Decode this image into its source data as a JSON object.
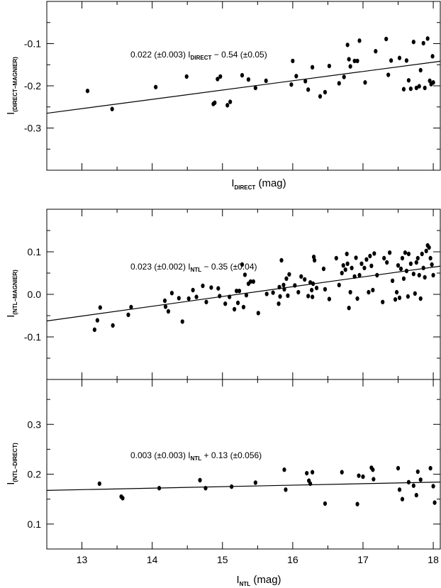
{
  "chart_data": [
    {
      "type": "scatter",
      "panel": "top",
      "xlabel_main": "I",
      "xlabel_sub": "DIRECT",
      "xlabel_unit": " (mag)",
      "ylabel_main": "I",
      "ylabel_sub": "(DIRECT−MAGNIER)",
      "xlim": [
        12.5,
        18.1
      ],
      "ylim": [
        -0.4,
        0.0
      ],
      "yticks": [
        -0.3,
        -0.2,
        -0.1
      ],
      "ytick_labels": [
        "-0.3",
        "-0.2",
        "-0.1"
      ],
      "fit": {
        "slope": 0.022,
        "intercept": -0.54
      },
      "equation": {
        "pre": "0.022 (±0.003) I",
        "sub": "DIRECT",
        "post": " − 0.54 (±0.05)"
      },
      "series": [
        {
          "x": [
            13.08,
            13.43,
            14.05,
            14.49,
            14.87,
            14.89,
            14.93,
            14.97,
            15.07,
            15.11,
            15.28,
            15.37,
            15.47,
            15.62,
            15.98,
            16.0,
            16.05,
            16.18,
            16.22,
            16.28,
            16.39,
            16.46,
            16.52,
            16.66,
            16.73,
            16.78,
            16.8,
            16.82,
            16.88,
            16.92,
            16.95,
            17.03,
            17.18,
            17.33,
            17.36,
            17.4,
            17.52,
            17.58,
            17.62,
            17.65,
            17.68,
            17.72,
            17.76,
            17.8,
            17.82,
            17.86,
            17.88,
            17.92,
            17.95,
            17.97,
            17.99,
            18.0
          ],
          "y": [
            -0.212,
            -0.255,
            -0.203,
            -0.178,
            -0.243,
            -0.24,
            -0.184,
            -0.178,
            -0.246,
            -0.238,
            -0.175,
            -0.185,
            -0.205,
            -0.188,
            -0.197,
            -0.141,
            -0.177,
            -0.189,
            -0.209,
            -0.156,
            -0.225,
            -0.215,
            -0.153,
            -0.194,
            -0.179,
            -0.103,
            -0.137,
            -0.154,
            -0.141,
            -0.141,
            -0.093,
            -0.192,
            -0.118,
            -0.089,
            -0.174,
            -0.14,
            -0.134,
            -0.208,
            -0.14,
            -0.187,
            -0.207,
            -0.096,
            -0.205,
            -0.201,
            -0.163,
            -0.099,
            -0.205,
            -0.088,
            -0.188,
            -0.196,
            -0.13,
            -0.192
          ]
        }
      ]
    },
    {
      "type": "scatter",
      "panel": "middle",
      "ylabel_main": "I",
      "ylabel_sub": "(NTL−MAGNIER)",
      "xlim": [
        12.5,
        18.1
      ],
      "ylim": [
        -0.2,
        0.2
      ],
      "yticks": [
        -0.1,
        0.0,
        0.1
      ],
      "ytick_labels": [
        "-0.1",
        "0.0",
        "0.1"
      ],
      "fit": {
        "slope": 0.023,
        "intercept": -0.35
      },
      "equation": {
        "pre": "0.023 (±0.002) I",
        "sub": "NTL",
        "post": " − 0.35 (±0.04)"
      },
      "series": [
        {
          "x": [
            13.18,
            13.22,
            13.26,
            13.44,
            13.66,
            13.7,
            14.18,
            14.19,
            14.23,
            14.28,
            14.38,
            14.43,
            14.52,
            14.58,
            14.63,
            14.72,
            14.77,
            14.84,
            14.94,
            14.96,
            15.04,
            15.1,
            15.17,
            15.2,
            15.22,
            15.24,
            15.28,
            15.3,
            15.32,
            15.34,
            15.37,
            15.4,
            15.44,
            15.51,
            15.63,
            15.72,
            15.8,
            15.81,
            15.82,
            15.84,
            15.87,
            15.88,
            15.91,
            15.93,
            15.95,
            16.03,
            16.08,
            16.12,
            16.17,
            16.22,
            16.25,
            16.27,
            16.28,
            16.29,
            16.3,
            16.31,
            16.34,
            16.44,
            16.46,
            16.52,
            16.62,
            16.66,
            16.7,
            16.72,
            16.75,
            16.77,
            16.78,
            16.8,
            16.82,
            16.84,
            16.88,
            16.9,
            16.92,
            16.95,
            16.98,
            17.02,
            17.05,
            17.08,
            17.1,
            17.12,
            17.14,
            17.16,
            17.2,
            17.28,
            17.3,
            17.34,
            17.38,
            17.42,
            17.46,
            17.48,
            17.5,
            17.52,
            17.54,
            17.56,
            17.58,
            17.6,
            17.62,
            17.64,
            17.65,
            17.68,
            17.72,
            17.74,
            17.76,
            17.78,
            17.8,
            17.82,
            17.84,
            17.86,
            17.88,
            17.9,
            17.92,
            17.94,
            17.96,
            17.98,
            18.0
          ],
          "y": [
            -0.083,
            -0.061,
            -0.031,
            -0.073,
            -0.048,
            -0.03,
            -0.015,
            -0.029,
            -0.04,
            0.003,
            -0.009,
            -0.064,
            -0.01,
            0.01,
            -0.006,
            0.02,
            -0.018,
            0.016,
            0.014,
            -0.004,
            -0.022,
            -0.006,
            -0.035,
            0.008,
            -0.02,
            0.008,
            0.07,
            -0.03,
            0.046,
            -0.002,
            0.025,
            0.03,
            0.03,
            -0.044,
            0.001,
            0.004,
            -0.022,
            0.017,
            -0.005,
            0.08,
            0.022,
            0.012,
            0.037,
            -0.003,
            0.047,
            0.021,
            0.005,
            0.042,
            0.035,
            -0.004,
            0.028,
            0.01,
            -0.006,
            0.025,
            0.088,
            0.08,
            0.015,
            0.06,
            0.012,
            -0.011,
            0.085,
            0.022,
            0.05,
            0.068,
            0.058,
            0.095,
            0.072,
            -0.032,
            0.005,
            0.062,
            0.042,
            0.086,
            -0.01,
            0.045,
            0.072,
            0.062,
            0.082,
            0.005,
            0.09,
            0.067,
            0.01,
            0.096,
            0.045,
            -0.018,
            0.085,
            0.075,
            0.098,
            0.032,
            -0.012,
            0.005,
            0.068,
            -0.008,
            0.06,
            0.085,
            0.037,
            0.098,
            0.055,
            -0.005,
            0.095,
            0.072,
            0.048,
            0.002,
            0.075,
            0.085,
            0.045,
            -0.01,
            0.095,
            0.062,
            0.04,
            0.102,
            0.115,
            0.11,
            0.085,
            0.07,
            0.045
          ]
        }
      ]
    },
    {
      "type": "scatter",
      "panel": "bottom",
      "xlabel_main": "I",
      "xlabel_sub": "NTL",
      "xlabel_unit": " (mag)",
      "ylabel_main": "I",
      "ylabel_sub": "(NTL−DIRECT)",
      "xlim": [
        12.5,
        18.1
      ],
      "ylim": [
        0.05,
        0.39
      ],
      "xticks": [
        13,
        14,
        15,
        16,
        17,
        18
      ],
      "xtick_labels": [
        "13",
        "14",
        "15",
        "16",
        "17",
        "18"
      ],
      "yticks": [
        0.1,
        0.2,
        0.3
      ],
      "ytick_labels": [
        "0.1",
        "0.2",
        "0.3"
      ],
      "fit": {
        "slope": 0.003,
        "intercept": 0.13
      },
      "equation": {
        "pre": "0.003 (±0.003) I",
        "sub": "NTL",
        "post": " + 0.13 (±0.056)"
      },
      "series": [
        {
          "x": [
            13.25,
            13.56,
            13.58,
            14.1,
            14.68,
            14.76,
            15.13,
            15.47,
            15.88,
            15.9,
            16.2,
            16.23,
            16.25,
            16.28,
            16.46,
            16.7,
            16.92,
            16.94,
            17.0,
            17.12,
            17.14,
            17.15,
            17.5,
            17.52,
            17.56,
            17.65,
            17.72,
            17.76,
            17.78,
            17.82,
            17.96,
            18.0,
            18.02
          ],
          "y": [
            0.181,
            0.155,
            0.152,
            0.172,
            0.188,
            0.172,
            0.175,
            0.183,
            0.209,
            0.169,
            0.202,
            0.187,
            0.181,
            0.204,
            0.141,
            0.204,
            0.14,
            0.197,
            0.195,
            0.213,
            0.209,
            0.19,
            0.212,
            0.169,
            0.15,
            0.184,
            0.177,
            0.158,
            0.205,
            0.189,
            0.212,
            0.176,
            0.143
          ]
        }
      ]
    }
  ]
}
